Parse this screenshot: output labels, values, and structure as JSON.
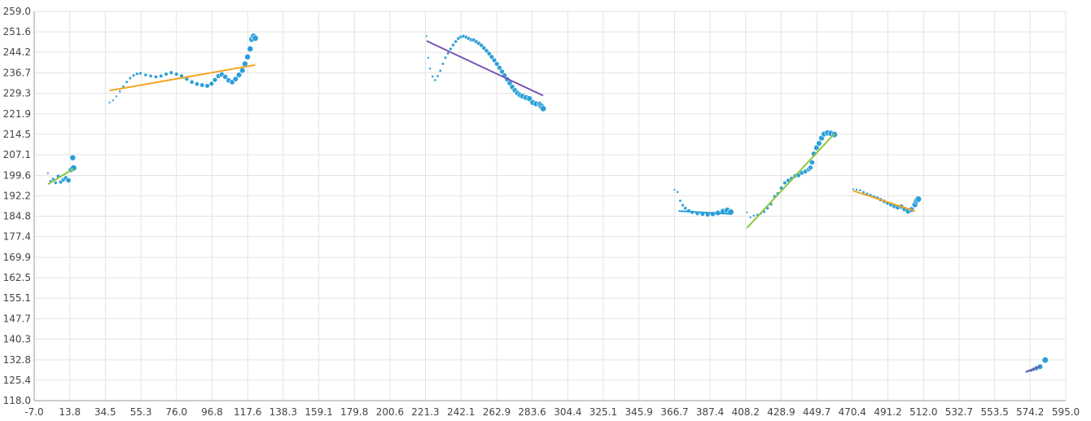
{
  "chart_data": {
    "type": "scatter",
    "title": "",
    "xlabel": "",
    "ylabel": "",
    "xlim": [
      -7.0,
      595.0
    ],
    "ylim": [
      118.0,
      259.0
    ],
    "grid": true,
    "x_ticks": [
      "-7.0",
      "13.8",
      "34.5",
      "55.3",
      "76.0",
      "96.8",
      "117.6",
      "138.3",
      "159.1",
      "179.8",
      "200.6",
      "221.3",
      "242.1",
      "262.9",
      "283.6",
      "304.4",
      "325.1",
      "345.9",
      "366.7",
      "387.4",
      "408.2",
      "428.9",
      "449.7",
      "470.4",
      "491.2",
      "512.0",
      "532.7",
      "553.5",
      "574.2",
      "595.0"
    ],
    "y_ticks": [
      "118.0",
      "125.4",
      "132.8",
      "140.3",
      "147.7",
      "155.1",
      "162.5",
      "169.9",
      "177.4",
      "184.8",
      "192.2",
      "199.6",
      "207.1",
      "214.5",
      "221.9",
      "229.3",
      "236.7",
      "244.2",
      "251.6",
      "259.0"
    ],
    "point_color": "#2b9fd8",
    "groups": [
      {
        "trend": {
          "x1": 1,
          "y1": 196.4,
          "x2": 16,
          "y2": 202.0,
          "color": "#8cc63f"
        },
        "points": [
          [
            1,
            200.4
          ],
          [
            2.5,
            197.6
          ],
          [
            4,
            198.3
          ],
          [
            5.5,
            196.9
          ],
          [
            7,
            199.3
          ],
          [
            8.5,
            197.2
          ],
          [
            10,
            198.0
          ],
          [
            11.5,
            198.6
          ],
          [
            13,
            197.8
          ],
          [
            14.5,
            201.6
          ],
          [
            15.5,
            206.0
          ],
          [
            16,
            202.3
          ]
        ]
      },
      {
        "trend": {
          "x1": 37,
          "y1": 230.3,
          "x2": 122,
          "y2": 239.6,
          "color": "#f5a623"
        },
        "points": [
          [
            37,
            226.0
          ],
          [
            39,
            226.8
          ],
          [
            41,
            228.2
          ],
          [
            43,
            230.0
          ],
          [
            45,
            231.8
          ],
          [
            47,
            233.4
          ],
          [
            49,
            234.8
          ],
          [
            51,
            235.8
          ],
          [
            53,
            236.4
          ],
          [
            55,
            236.6
          ],
          [
            58,
            236.0
          ],
          [
            61,
            235.6
          ],
          [
            64,
            235.3
          ],
          [
            67,
            235.6
          ],
          [
            70,
            236.3
          ],
          [
            73,
            236.8
          ],
          [
            76,
            236.3
          ],
          [
            79,
            235.6
          ],
          [
            82,
            234.5
          ],
          [
            85,
            233.4
          ],
          [
            88,
            232.7
          ],
          [
            91,
            232.3
          ],
          [
            94,
            232.0
          ],
          [
            96.5,
            232.8
          ],
          [
            98.5,
            234.2
          ],
          [
            100.5,
            235.6
          ],
          [
            102.5,
            236.2
          ],
          [
            104.5,
            235.3
          ],
          [
            106.5,
            234.0
          ],
          [
            108.5,
            233.4
          ],
          [
            110.5,
            234.5
          ],
          [
            112.5,
            236.0
          ],
          [
            114.5,
            237.6
          ],
          [
            116,
            240.0
          ],
          [
            117.5,
            242.5
          ],
          [
            119,
            245.4
          ],
          [
            120,
            248.9
          ],
          [
            121,
            250.0
          ],
          [
            122,
            249.3
          ]
        ]
      },
      {
        "trend": {
          "x1": 222,
          "y1": 248.3,
          "x2": 290,
          "y2": 228.5,
          "color": "#7952b3"
        },
        "points": [
          [
            222,
            250.0
          ],
          [
            223,
            242.2
          ],
          [
            224,
            238.3
          ],
          [
            225.5,
            235.4
          ],
          [
            227,
            234.1
          ],
          [
            228.5,
            235.6
          ],
          [
            230,
            237.5
          ],
          [
            231.5,
            240.0
          ],
          [
            233,
            242.2
          ],
          [
            234.5,
            243.8
          ],
          [
            236,
            245.4
          ],
          [
            237.5,
            246.8
          ],
          [
            239,
            248.1
          ],
          [
            240.5,
            249.2
          ],
          [
            242,
            249.8
          ],
          [
            243.5,
            250.0
          ],
          [
            245,
            249.7
          ],
          [
            246.5,
            249.2
          ],
          [
            248,
            248.7
          ],
          [
            249.5,
            248.6
          ],
          [
            251,
            248.0
          ],
          [
            252.5,
            247.4
          ],
          [
            254,
            246.7
          ],
          [
            255.5,
            245.7
          ],
          [
            257,
            244.7
          ],
          [
            258.5,
            243.7
          ],
          [
            260,
            242.5
          ],
          [
            261.5,
            241.3
          ],
          [
            263,
            240.0
          ],
          [
            264.5,
            238.6
          ],
          [
            266,
            237.2
          ],
          [
            267.5,
            235.8
          ],
          [
            269,
            234.4
          ],
          [
            270.5,
            233.0
          ],
          [
            272,
            231.6
          ],
          [
            273.5,
            230.4
          ],
          [
            275,
            229.4
          ],
          [
            276.5,
            228.7
          ],
          [
            278,
            228.3
          ],
          [
            280,
            227.8
          ],
          [
            282,
            227.4
          ],
          [
            284,
            226.0
          ],
          [
            286,
            225.5
          ],
          [
            288,
            225.3
          ],
          [
            289,
            224.6
          ],
          [
            290,
            223.8
          ]
        ]
      },
      {
        "trend": {
          "x1": 369,
          "y1": 186.7,
          "x2": 400,
          "y2": 185.6,
          "color": "#2b9fd8"
        },
        "points": [
          [
            366.7,
            194.4
          ],
          [
            368.5,
            193.6
          ],
          [
            370,
            190.4
          ],
          [
            371.5,
            188.8
          ],
          [
            373,
            187.7
          ],
          [
            375,
            186.8
          ],
          [
            377,
            186.2
          ],
          [
            380,
            185.8
          ],
          [
            383,
            185.6
          ],
          [
            386,
            185.4
          ],
          [
            389,
            185.6
          ],
          [
            392,
            186.0
          ],
          [
            395,
            186.6
          ],
          [
            397.5,
            187.0
          ],
          [
            399.5,
            186.3
          ]
        ]
      },
      {
        "trend": {
          "x1": 409,
          "y1": 180.6,
          "x2": 460,
          "y2": 214.7,
          "color": "#8cc63f"
        },
        "points": [
          [
            409,
            186.2
          ],
          [
            411,
            184.4
          ],
          [
            413,
            185.0
          ],
          [
            415,
            185.3
          ],
          [
            417,
            185.8
          ],
          [
            419,
            186.4
          ],
          [
            421,
            187.7
          ],
          [
            423,
            189.2
          ],
          [
            425,
            192.0
          ],
          [
            427,
            193.0
          ],
          [
            429,
            195.0
          ],
          [
            431,
            196.9
          ],
          [
            433,
            197.8
          ],
          [
            435,
            198.5
          ],
          [
            437,
            199.4
          ],
          [
            439,
            199.6
          ],
          [
            441,
            200.5
          ],
          [
            443,
            201.0
          ],
          [
            445,
            201.8
          ],
          [
            446,
            202.4
          ],
          [
            447,
            204.3
          ],
          [
            448,
            207.4
          ],
          [
            449.5,
            209.6
          ],
          [
            451,
            211.2
          ],
          [
            452.5,
            213.1
          ],
          [
            454,
            214.6
          ],
          [
            456,
            215.0
          ],
          [
            458,
            214.8
          ],
          [
            460,
            214.4
          ]
        ]
      },
      {
        "trend": {
          "x1": 471,
          "y1": 194.0,
          "x2": 507,
          "y2": 186.7,
          "color": "#f5a623"
        },
        "points": [
          [
            471,
            194.6
          ],
          [
            473,
            194.4
          ],
          [
            475,
            194.2
          ],
          [
            477,
            193.5
          ],
          [
            479,
            192.9
          ],
          [
            481,
            192.4
          ],
          [
            483,
            191.9
          ],
          [
            485,
            191.4
          ],
          [
            487,
            190.8
          ],
          [
            489,
            190.2
          ],
          [
            491,
            189.6
          ],
          [
            493,
            189.0
          ],
          [
            495,
            188.4
          ],
          [
            497,
            188.0
          ],
          [
            499,
            188.3
          ],
          [
            501,
            187.4
          ],
          [
            503,
            186.6
          ],
          [
            505,
            187.2
          ],
          [
            507,
            189.0
          ],
          [
            508,
            190.4
          ],
          [
            509,
            191.0
          ]
        ]
      },
      {
        "trend": {
          "x1": 572,
          "y1": 128.5,
          "x2": 580,
          "y2": 130.3,
          "color": "#7952b3"
        },
        "points": [
          [
            572,
            128.4
          ],
          [
            573.5,
            128.8
          ],
          [
            575,
            129.0
          ],
          [
            576.5,
            129.4
          ],
          [
            578,
            129.8
          ],
          [
            580,
            130.3
          ],
          [
            583,
            132.7
          ]
        ]
      }
    ]
  }
}
